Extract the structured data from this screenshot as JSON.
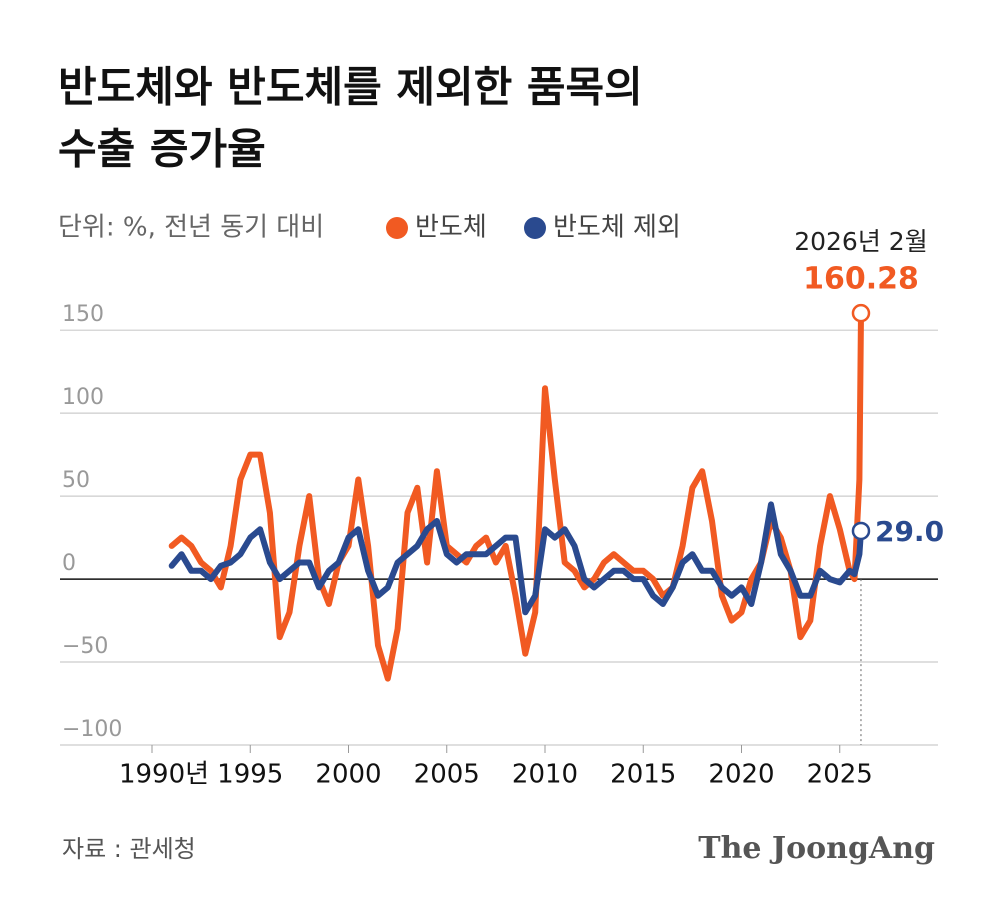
{
  "chart_data": {
    "type": "line",
    "title": [
      "반도체와 반도체를 제외한 품목의",
      "수출 증가율"
    ],
    "subtitle": "단위: %, 전년 동기 대비",
    "callout": "2026년 2월",
    "source": "자료 : 관세청",
    "logo": "The JoongAng",
    "x": [
      1991,
      1991.5,
      1992,
      1992.5,
      1993,
      1993.5,
      1994,
      1994.5,
      1995,
      1995.5,
      1996,
      1996.5,
      1997,
      1997.5,
      1998,
      1998.5,
      1999,
      1999.5,
      2000,
      2000.5,
      2001,
      2001.5,
      2002,
      2002.5,
      2003,
      2003.5,
      2004,
      2004.5,
      2005,
      2005.5,
      2006,
      2006.5,
      2007,
      2007.5,
      2008,
      2008.5,
      2009,
      2009.5,
      2010,
      2010.5,
      2011,
      2011.5,
      2012,
      2012.5,
      2013,
      2013.5,
      2014,
      2014.5,
      2015,
      2015.5,
      2016,
      2016.5,
      2017,
      2017.5,
      2018,
      2018.5,
      2019,
      2019.5,
      2020,
      2020.5,
      2021,
      2021.5,
      2022,
      2022.5,
      2023,
      2023.5,
      2024,
      2024.5,
      2025,
      2025.5,
      2025.75,
      2026,
      2026.08
    ],
    "series": [
      {
        "name": "반도체",
        "color": "#f15a22",
        "values": [
          20,
          25,
          20,
          10,
          5,
          -5,
          20,
          60,
          75,
          75,
          40,
          -35,
          -20,
          20,
          50,
          0,
          -15,
          10,
          20,
          60,
          20,
          -40,
          -60,
          -30,
          40,
          55,
          10,
          65,
          20,
          15,
          10,
          20,
          25,
          10,
          20,
          -10,
          -45,
          -20,
          115,
          60,
          10,
          5,
          -5,
          0,
          10,
          15,
          10,
          5,
          5,
          0,
          -10,
          -5,
          20,
          55,
          65,
          35,
          -10,
          -25,
          -20,
          0,
          10,
          35,
          25,
          5,
          -35,
          -25,
          20,
          50,
          30,
          5,
          0,
          60,
          160.28
        ]
      },
      {
        "name": "반도체 제외",
        "color": "#2a4a8f",
        "values": [
          8,
          15,
          5,
          5,
          0,
          8,
          10,
          15,
          25,
          30,
          10,
          0,
          5,
          10,
          10,
          -5,
          5,
          10,
          25,
          30,
          5,
          -10,
          -5,
          10,
          15,
          20,
          30,
          35,
          15,
          10,
          15,
          15,
          15,
          20,
          25,
          25,
          -20,
          -10,
          30,
          25,
          30,
          20,
          0,
          -5,
          0,
          5,
          5,
          0,
          0,
          -10,
          -15,
          -5,
          10,
          15,
          5,
          5,
          -5,
          -10,
          -5,
          -15,
          10,
          45,
          15,
          5,
          -10,
          -10,
          5,
          0,
          -2,
          5,
          3,
          15,
          29.0
        ],
        "value_labels": [
          null,
          null,
          null,
          null,
          null,
          null,
          null,
          null,
          null,
          null,
          null,
          null,
          null,
          null,
          null,
          null,
          null,
          null,
          null,
          null,
          null,
          null,
          null,
          null,
          null,
          null,
          null,
          null,
          null,
          null,
          null,
          null,
          null,
          null,
          null,
          null,
          null,
          null,
          null,
          null,
          null,
          null,
          null,
          null,
          null,
          null,
          null,
          null,
          null,
          null,
          null,
          null,
          null,
          null,
          null,
          null,
          null,
          null,
          null,
          null,
          null,
          null,
          null,
          null,
          null,
          null,
          null,
          null,
          null,
          null,
          null,
          null,
          "29.0"
        ]
      }
    ],
    "xlim": [
      1990,
      2030
    ],
    "xticks": [
      {
        "value": 1990,
        "label": "1990년"
      },
      1995,
      2000,
      2005,
      2010,
      2015,
      2020,
      2025
    ],
    "ylim": [
      -100,
      170
    ],
    "yticks": [
      {
        "value": -100,
        "label": "−100"
      },
      {
        "value": -50,
        "label": "−50"
      },
      0,
      50,
      100,
      150
    ],
    "grid": true
  }
}
